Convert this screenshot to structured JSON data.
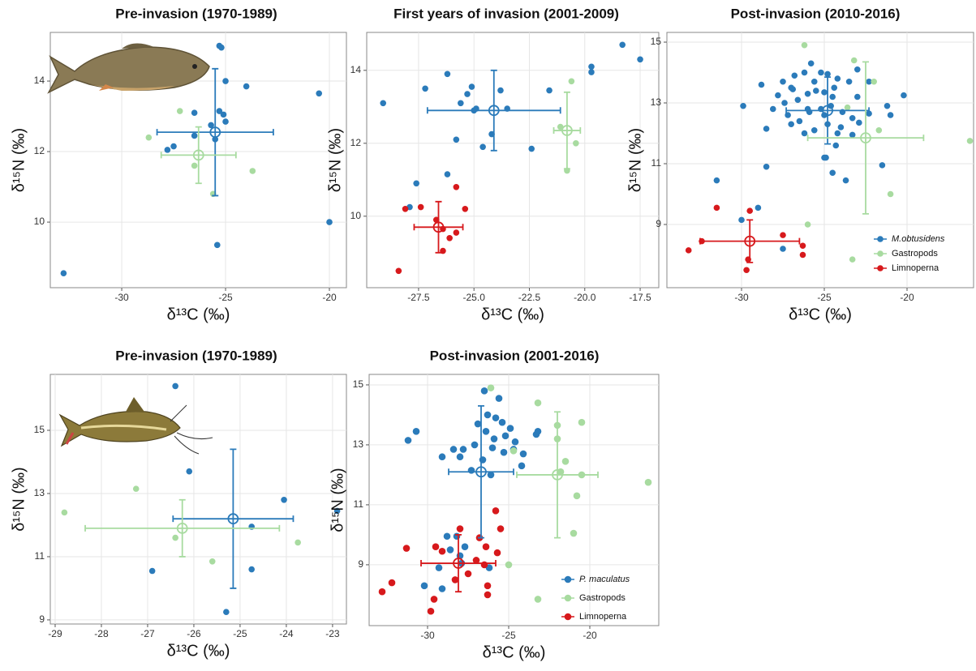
{
  "chart_data": [
    {
      "type": "scatter",
      "title": "Pre-invasion (1970-1989)",
      "xlabel": "δ¹³C (‰)",
      "ylabel": "δ¹⁵N (‰)",
      "xlim": [
        -33.44,
        -19.18
      ],
      "ylim": [
        8.14,
        15.38
      ],
      "xticks": [
        -30,
        -25,
        -20
      ],
      "yticks": [
        10,
        12,
        14
      ],
      "grid": true,
      "series": [
        {
          "color": "#2b7bba",
          "x": [
            -32.8,
            -25.3,
            -25.2,
            -25.0,
            -24.0,
            -20.5,
            -26.5,
            -25.3,
            -25.1,
            -25.7,
            -25.0,
            -26.5,
            -25.5,
            -27.5,
            -27.8,
            -20.0,
            -25.4
          ],
          "y": [
            8.55,
            15.0,
            14.95,
            14.0,
            13.85,
            13.65,
            13.1,
            13.15,
            13.05,
            12.75,
            12.85,
            12.45,
            12.35,
            12.15,
            12.05,
            10.0,
            9.35
          ]
        },
        {
          "color": "#a8dba0",
          "x": [
            -27.2,
            -28.7,
            -26.5,
            -23.7,
            -25.6
          ],
          "y": [
            13.15,
            12.4,
            11.6,
            11.45,
            10.8
          ]
        }
      ],
      "means": [
        {
          "color": "#2b7bba",
          "x": -25.5,
          "y": 12.55,
          "xerr": 2.8,
          "yerr": 1.8
        },
        {
          "color": "#a8dba0",
          "x": -26.3,
          "y": 11.9,
          "xerr": 1.8,
          "yerr": 0.8
        }
      ]
    },
    {
      "type": "scatter",
      "title": "First years of invasion (2001-2009)",
      "xlabel": "δ¹³C (‰)",
      "ylabel": "δ¹⁵N (‰)",
      "xlim": [
        -29.84,
        -16.66
      ],
      "ylim": [
        8.04,
        15.04
      ],
      "xticks": [
        -27.5,
        {
          "value": -25,
          "label": "-25.0"
        },
        -22.5,
        {
          "value": -20,
          "label": "-20.0"
        },
        -17.5
      ],
      "yticks": [
        10,
        12,
        14
      ],
      "grid": true,
      "series": [
        {
          "color": "#2b7bba",
          "x": [
            -29.1,
            -27.2,
            -26.2,
            -25.6,
            -25.1,
            -25.3,
            -25.0,
            -24.9,
            -23.8,
            -23.5,
            -21.6,
            -19.7,
            -19.7,
            -18.3,
            -17.5,
            -24.2,
            -25.8,
            -24.6,
            -22.4,
            -26.2,
            -27.6,
            -27.9
          ],
          "y": [
            13.1,
            13.5,
            13.9,
            13.1,
            13.55,
            13.35,
            12.9,
            12.95,
            13.45,
            12.95,
            13.45,
            14.1,
            13.95,
            14.7,
            14.3,
            12.25,
            12.1,
            11.9,
            11.85,
            11.15,
            10.9,
            10.25
          ]
        },
        {
          "color": "#a8dba0",
          "x": [
            -20.6,
            -21.1,
            -20.4,
            -20.8
          ],
          "y": [
            13.7,
            12.45,
            12.0,
            11.25
          ]
        },
        {
          "color": "#d7191c",
          "x": [
            -28.1,
            -27.4,
            -25.8,
            -25.4,
            -26.7,
            -26.4,
            -25.8,
            -26.1,
            -26.4,
            -28.4
          ],
          "y": [
            10.2,
            10.25,
            10.8,
            10.2,
            9.9,
            9.65,
            9.55,
            9.4,
            9.05,
            8.5
          ]
        }
      ],
      "means": [
        {
          "color": "#2b7bba",
          "x": -24.1,
          "y": 12.9,
          "xerr": 3.0,
          "yerr": 1.1
        },
        {
          "color": "#a8dba0",
          "x": -20.8,
          "y": 12.35,
          "xerr": 0.6,
          "yerr": 1.05
        },
        {
          "color": "#d7191c",
          "x": -26.6,
          "y": 9.7,
          "xerr": 1.1,
          "yerr": 0.7
        }
      ]
    },
    {
      "type": "scatter",
      "title": "Post-invasion (2010-2016)",
      "xlabel": "δ¹³C (‰)",
      "ylabel": "δ¹⁵N (‰)",
      "xlim": [
        -34.51,
        -15.98
      ],
      "ylim": [
        6.92,
        15.32
      ],
      "xticks": [
        -30,
        -25,
        -20
      ],
      "yticks": [
        9,
        11,
        13,
        15
      ],
      "grid": true,
      "legend": "bottom-right",
      "series": [
        {
          "name": "M.obtusidens",
          "color": "#2b7bba",
          "x": [
            -28.8,
            -27.5,
            -27.0,
            -26.8,
            -26.2,
            -25.8,
            -25.2,
            -24.8,
            -24.2,
            -23.5,
            -23.0,
            -22.3,
            -20.2,
            -21.2,
            -21.0,
            -22.3,
            -23.0,
            -24.5,
            -25.0,
            -25.5,
            -26.0,
            -26.6,
            -27.4,
            -28.1,
            -27.2,
            -26.5,
            -25.9,
            -25.2,
            -24.6,
            -23.9,
            -23.3,
            -24.0,
            -24.8,
            -25.6,
            -26.2,
            -27.0,
            -28.5,
            -29.9,
            -27.8,
            -24.2,
            -23.3,
            -22.9,
            -24.9,
            -25.0,
            -24.3,
            -26.0,
            -25.0,
            -24.4,
            -25.6,
            -26.9,
            -31.5,
            -29.0,
            -30.0,
            -27.5,
            -23.7,
            -24.5,
            -21.5,
            -28.5
          ],
          "y": [
            13.6,
            13.7,
            13.5,
            13.9,
            14.0,
            14.3,
            14.0,
            13.95,
            13.8,
            13.7,
            14.1,
            13.7,
            13.25,
            12.9,
            12.6,
            12.65,
            13.2,
            13.2,
            13.35,
            13.4,
            13.3,
            13.1,
            13.0,
            12.8,
            12.6,
            12.4,
            12.7,
            12.8,
            12.9,
            12.7,
            12.5,
            12.2,
            12.3,
            12.1,
            12.0,
            12.3,
            12.15,
            12.9,
            13.25,
            12.0,
            11.95,
            12.35,
            11.2,
            11.2,
            11.6,
            12.8,
            12.6,
            13.5,
            13.7,
            13.45,
            10.45,
            9.55,
            9.15,
            8.2,
            10.45,
            10.7,
            10.95,
            10.9
          ]
        },
        {
          "name": "Gastropods",
          "color": "#a8dba0",
          "x": [
            -26.2,
            -23.2,
            -22.0,
            -23.6,
            -21.7,
            -16.2,
            -21.0,
            -26.0,
            -23.3
          ],
          "y": [
            14.9,
            14.4,
            13.7,
            12.85,
            12.1,
            11.75,
            10.0,
            9.0,
            7.85
          ]
        },
        {
          "name": "Limnoperna",
          "color": "#d7191c",
          "x": [
            -31.5,
            -29.5,
            -33.2,
            -32.4,
            -29.6,
            -29.7,
            -27.5,
            -26.3,
            -26.3
          ],
          "y": [
            9.55,
            9.45,
            8.15,
            8.45,
            7.85,
            7.5,
            8.65,
            8.3,
            8.0
          ]
        }
      ],
      "means": [
        {
          "color": "#2b7bba",
          "x": -24.8,
          "y": 12.75,
          "xerr": 2.5,
          "yerr": 1.1
        },
        {
          "color": "#a8dba0",
          "x": -22.5,
          "y": 11.85,
          "xerr": 3.5,
          "yerr": 2.5
        },
        {
          "color": "#d7191c",
          "x": -29.5,
          "y": 8.45,
          "xerr": 3.0,
          "yerr": 0.7
        }
      ]
    },
    {
      "type": "scatter",
      "title": "Pre-invasion (1970-1989)",
      "xlabel": "δ¹³C (‰)",
      "ylabel": "δ¹⁵N (‰)",
      "xlim": [
        -29.105,
        -22.7
      ],
      "ylim": [
        8.87,
        16.77
      ],
      "xticks": [
        -29,
        -28,
        -27,
        -26,
        -25,
        -24,
        -23
      ],
      "yticks": [
        9,
        11,
        13,
        15
      ],
      "grid": true,
      "series": [
        {
          "color": "#2b7bba",
          "x": [
            -26.4,
            -26.1,
            -24.05,
            -22.9,
            -24.75,
            -26.9,
            -24.75,
            -25.3
          ],
          "y": [
            16.4,
            13.7,
            12.8,
            12.45,
            11.95,
            10.55,
            10.6,
            9.25
          ]
        },
        {
          "color": "#a8dba0",
          "x": [
            -28.8,
            -27.25,
            -26.4,
            -25.6,
            -23.75
          ],
          "y": [
            12.4,
            13.15,
            11.6,
            10.85,
            11.45
          ]
        }
      ],
      "means": [
        {
          "color": "#2b7bba",
          "x": -25.15,
          "y": 12.2,
          "xerr": 1.3,
          "yerr": 2.2
        },
        {
          "color": "#a8dba0",
          "x": -26.25,
          "y": 11.9,
          "xerr": 2.1,
          "yerr": 0.9
        }
      ]
    },
    {
      "type": "scatter",
      "title": "Post-invasion (2001-2016)",
      "xlabel": "δ¹³C (‰)",
      "ylabel": "δ¹⁵N (‰)",
      "xlim": [
        -33.6,
        -15.75
      ],
      "ylim": [
        6.97,
        15.35
      ],
      "xticks": [
        -30,
        -25,
        -20
      ],
      "yticks": [
        9,
        11,
        13,
        15
      ],
      "grid": true,
      "legend": "bottom-right",
      "series": [
        {
          "name": "P. maculatus",
          "color": "#2b7bba",
          "x": [
            -26.5,
            -25.6,
            -26.3,
            -25.8,
            -26.9,
            -25.4,
            -24.9,
            -26.4,
            -25.2,
            -24.6,
            -23.2,
            -23.3,
            -27.1,
            -26.0,
            -25.3,
            -24.7,
            -24.1,
            -27.8,
            -28.4,
            -26.6,
            -27.3,
            -24.2,
            -29.1,
            -31.2,
            -30.7,
            -26.1,
            -25.9,
            -28.0,
            -28.8,
            -28.2,
            -27.7,
            -28.6,
            -28.0,
            -27.9,
            -29.3,
            -30.2,
            -29.1,
            -26.2
          ],
          "y": [
            14.8,
            14.55,
            14.0,
            13.9,
            13.7,
            13.75,
            13.55,
            13.45,
            13.3,
            13.1,
            13.45,
            13.35,
            13.0,
            12.9,
            12.75,
            12.85,
            12.7,
            12.85,
            12.85,
            12.5,
            12.15,
            12.3,
            12.6,
            13.15,
            13.45,
            12.0,
            13.2,
            12.6,
            9.95,
            9.95,
            9.6,
            9.5,
            9.3,
            9.05,
            8.9,
            8.3,
            8.2,
            8.9
          ]
        },
        {
          "name": "Gastropods",
          "color": "#a8dba0",
          "x": [
            -26.1,
            -23.2,
            -22.0,
            -22.0,
            -20.5,
            -24.7,
            -21.5,
            -21.8,
            -20.5,
            -16.4,
            -20.8,
            -21.0,
            -25.0,
            -23.2
          ],
          "y": [
            14.9,
            14.4,
            13.65,
            13.2,
            13.75,
            12.8,
            12.45,
            12.1,
            12.0,
            11.75,
            11.3,
            10.05,
            9.0,
            7.85
          ]
        },
        {
          "name": "Limnoperna",
          "color": "#d7191c",
          "x": [
            -31.3,
            -29.1,
            -32.8,
            -32.2,
            -29.6,
            -29.8,
            -28.0,
            -26.8,
            -25.8,
            -25.5,
            -26.4,
            -25.7,
            -26.5,
            -28.3,
            -27.5,
            -26.3,
            -26.3,
            -29.5,
            -27.0
          ],
          "y": [
            9.55,
            9.45,
            8.1,
            8.4,
            7.85,
            7.45,
            10.2,
            9.9,
            10.8,
            10.2,
            9.6,
            9.4,
            9.0,
            8.5,
            8.7,
            8.3,
            8.0,
            9.6,
            9.15
          ]
        }
      ],
      "means": [
        {
          "color": "#2b7bba",
          "x": -26.7,
          "y": 12.1,
          "xerr": 2.0,
          "yerr": 2.2
        },
        {
          "color": "#a8dba0",
          "x": -22.0,
          "y": 12.0,
          "xerr": 2.5,
          "yerr": 2.1
        },
        {
          "color": "#d7191c",
          "x": -28.1,
          "y": 9.05,
          "xerr": 2.3,
          "yerr": 0.95
        }
      ]
    }
  ]
}
